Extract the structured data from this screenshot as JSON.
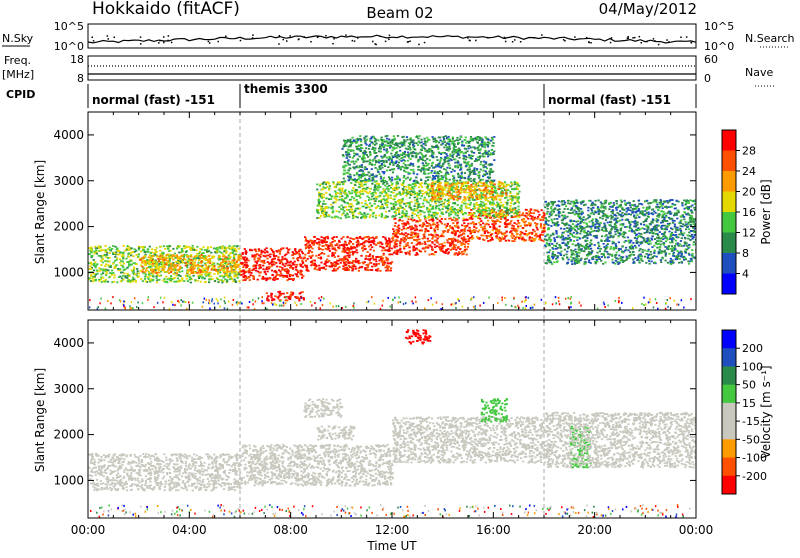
{
  "header": {
    "station": "Hokkaido (fitACF)",
    "beam": "Beam 02",
    "date": "04/May/2012"
  },
  "noise_panel": {
    "left_label": "N.Sky",
    "left_ticks": [
      "10^5",
      "10^0"
    ],
    "right_ticks": [
      "10^5",
      "10^0"
    ],
    "right_label": "N.Search"
  },
  "freq_panel": {
    "left_label_1": "Freq.",
    "left_label_2": "[MHz]",
    "left_ticks": [
      "18",
      "8"
    ],
    "right_ticks": [
      "60",
      "0"
    ],
    "right_label": "Nave"
  },
  "cpid": {
    "label": "CPID",
    "segments": [
      {
        "name": "normal (fast) -151",
        "start_hour": 0,
        "end_hour": 6
      },
      {
        "name": "themis 3300",
        "start_hour": 6,
        "end_hour": 18
      },
      {
        "name": "normal (fast) -151",
        "start_hour": 18,
        "end_hour": 24
      }
    ]
  },
  "colors": {
    "power_scale": [
      "#0000ff",
      "#1f4fbf",
      "#2a8a4a",
      "#44c840",
      "#e4d800",
      "#ff9a00",
      "#ff5000",
      "#ff0000"
    ],
    "velocity_scale": [
      "#ff0000",
      "#ff5000",
      "#ff9a00",
      "#c9c8be",
      "#c9c8be",
      "#44c840",
      "#2a8a4a",
      "#1f4fbf",
      "#0000ff"
    ],
    "ground_scatter": "#c9c8be"
  },
  "chart_data": [
    {
      "type": "heatmap",
      "panel": "power",
      "xlabel": "",
      "ylabel": "Slant Range [km]",
      "xlim": [
        0,
        24
      ],
      "ylim": [
        180,
        4500
      ],
      "yticks": [
        "1000",
        "2000",
        "3000",
        "4000"
      ],
      "colorbar": {
        "label": "Power [dB]",
        "ticks": [
          "28",
          "24",
          "20",
          "16",
          "12",
          "8",
          "4"
        ],
        "range": [
          0,
          30
        ]
      },
      "echo_regions": [
        {
          "t0": 0.0,
          "t1": 6.0,
          "r0": 800,
          "r1": 1600,
          "value": 14
        },
        {
          "t0": 2.0,
          "t1": 6.0,
          "r0": 1000,
          "r1": 1400,
          "value": 20
        },
        {
          "t0": 6.0,
          "t1": 8.5,
          "r0": 850,
          "r1": 1550,
          "value": 28
        },
        {
          "t0": 8.5,
          "t1": 12.0,
          "r0": 1050,
          "r1": 1800,
          "value": 27
        },
        {
          "t0": 12.0,
          "t1": 15.0,
          "r0": 1400,
          "r1": 2200,
          "value": 26
        },
        {
          "t0": 15.0,
          "t1": 18.0,
          "r0": 1700,
          "r1": 2400,
          "value": 25
        },
        {
          "t0": 7.0,
          "t1": 8.5,
          "r0": 400,
          "r1": 600,
          "value": 28
        },
        {
          "t0": 9.0,
          "t1": 17.0,
          "r0": 2200,
          "r1": 3000,
          "value": 14
        },
        {
          "t0": 13.5,
          "t1": 16.5,
          "r0": 2600,
          "r1": 3000,
          "value": 20
        },
        {
          "t0": 10.0,
          "t1": 16.0,
          "r0": 3000,
          "r1": 4000,
          "value": 10
        },
        {
          "t0": 18.0,
          "t1": 24.0,
          "r0": 1200,
          "r1": 2600,
          "value": 9
        }
      ]
    },
    {
      "type": "heatmap",
      "panel": "velocity",
      "xlabel": "Time UT",
      "ylabel": "Slant Range [km]",
      "xlim": [
        0,
        24
      ],
      "ylim": [
        180,
        4500
      ],
      "yticks": [
        "1000",
        "2000",
        "3000",
        "4000"
      ],
      "xticks": [
        "00:00",
        "04:00",
        "08:00",
        "12:00",
        "16:00",
        "20:00",
        "00:00"
      ],
      "colorbar": {
        "label": "Velocity [m s⁻¹]",
        "ticks": [
          "200",
          "100",
          "50",
          "15",
          "-15",
          "-50",
          "-100",
          "-200"
        ],
        "range": [
          -250,
          250
        ]
      },
      "echo_regions": [
        {
          "t0": 0.0,
          "t1": 6.0,
          "r0": 800,
          "r1": 1600,
          "value": 0
        },
        {
          "t0": 6.0,
          "t1": 12.0,
          "r0": 900,
          "r1": 1800,
          "value": 0
        },
        {
          "t0": 12.0,
          "t1": 18.0,
          "r0": 1400,
          "r1": 2400,
          "value": 0
        },
        {
          "t0": 9.0,
          "t1": 10.5,
          "r0": 1900,
          "r1": 2200,
          "value": -40
        },
        {
          "t0": 8.5,
          "t1": 10.0,
          "r0": 2400,
          "r1": 2800,
          "value": -40
        },
        {
          "t0": 15.5,
          "t1": 16.5,
          "r0": 2300,
          "r1": 2800,
          "value": 40
        },
        {
          "t0": 19.0,
          "t1": 19.8,
          "r0": 1300,
          "r1": 2200,
          "value": 40
        },
        {
          "t0": 12.5,
          "t1": 13.5,
          "r0": 4000,
          "r1": 4300,
          "value": -220
        },
        {
          "t0": 18.0,
          "t1": 24.0,
          "r0": 1300,
          "r1": 2500,
          "value": 0
        }
      ]
    }
  ]
}
